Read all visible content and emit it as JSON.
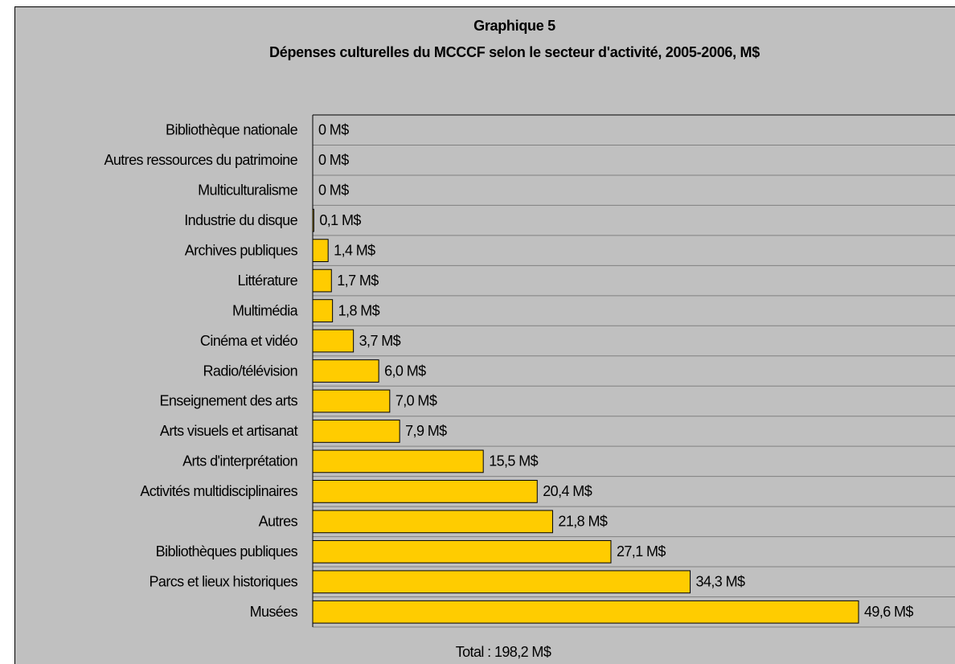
{
  "chart_data": {
    "type": "bar",
    "orientation": "horizontal",
    "title": "Graphique 5",
    "subtitle": "Dépenses culturelles du MCCCF selon le secteur d'activité, 2005-2006, M$",
    "annotation": "Total : 198,2 M$",
    "categories": [
      "Bibliothèque nationale",
      "Autres ressources du patrimoine",
      "Multiculturalisme",
      "Industrie du disque",
      "Archives publiques",
      "Littérature",
      "Multimédia",
      "Cinéma et vidéo",
      "Radio/télévision",
      "Enseignement des arts",
      "Arts visuels et artisanat",
      "Arts d'interprétation",
      "Activités multidisciplinaires",
      "Autres",
      "Bibliothèques publiques",
      "Parcs et lieux historiques",
      "Musées"
    ],
    "values": [
      0,
      0,
      0,
      0.1,
      1.4,
      1.7,
      1.8,
      3.7,
      6.0,
      7.0,
      7.9,
      15.5,
      20.4,
      21.8,
      27.1,
      34.3,
      49.6
    ],
    "value_labels": [
      "0 M$",
      "0 M$",
      "0 M$",
      "0,1 M$",
      "1,4 M$",
      "1,7 M$",
      "1,8 M$",
      "3,7 M$",
      "6,0 M$",
      "7,0 M$",
      "7,9 M$",
      "15,5 M$",
      "20,4 M$",
      "21,8 M$",
      "27,1 M$",
      "34,3 M$",
      "49,6 M$"
    ],
    "color": "#ffcc00",
    "xlim": [
      0,
      58
    ]
  }
}
